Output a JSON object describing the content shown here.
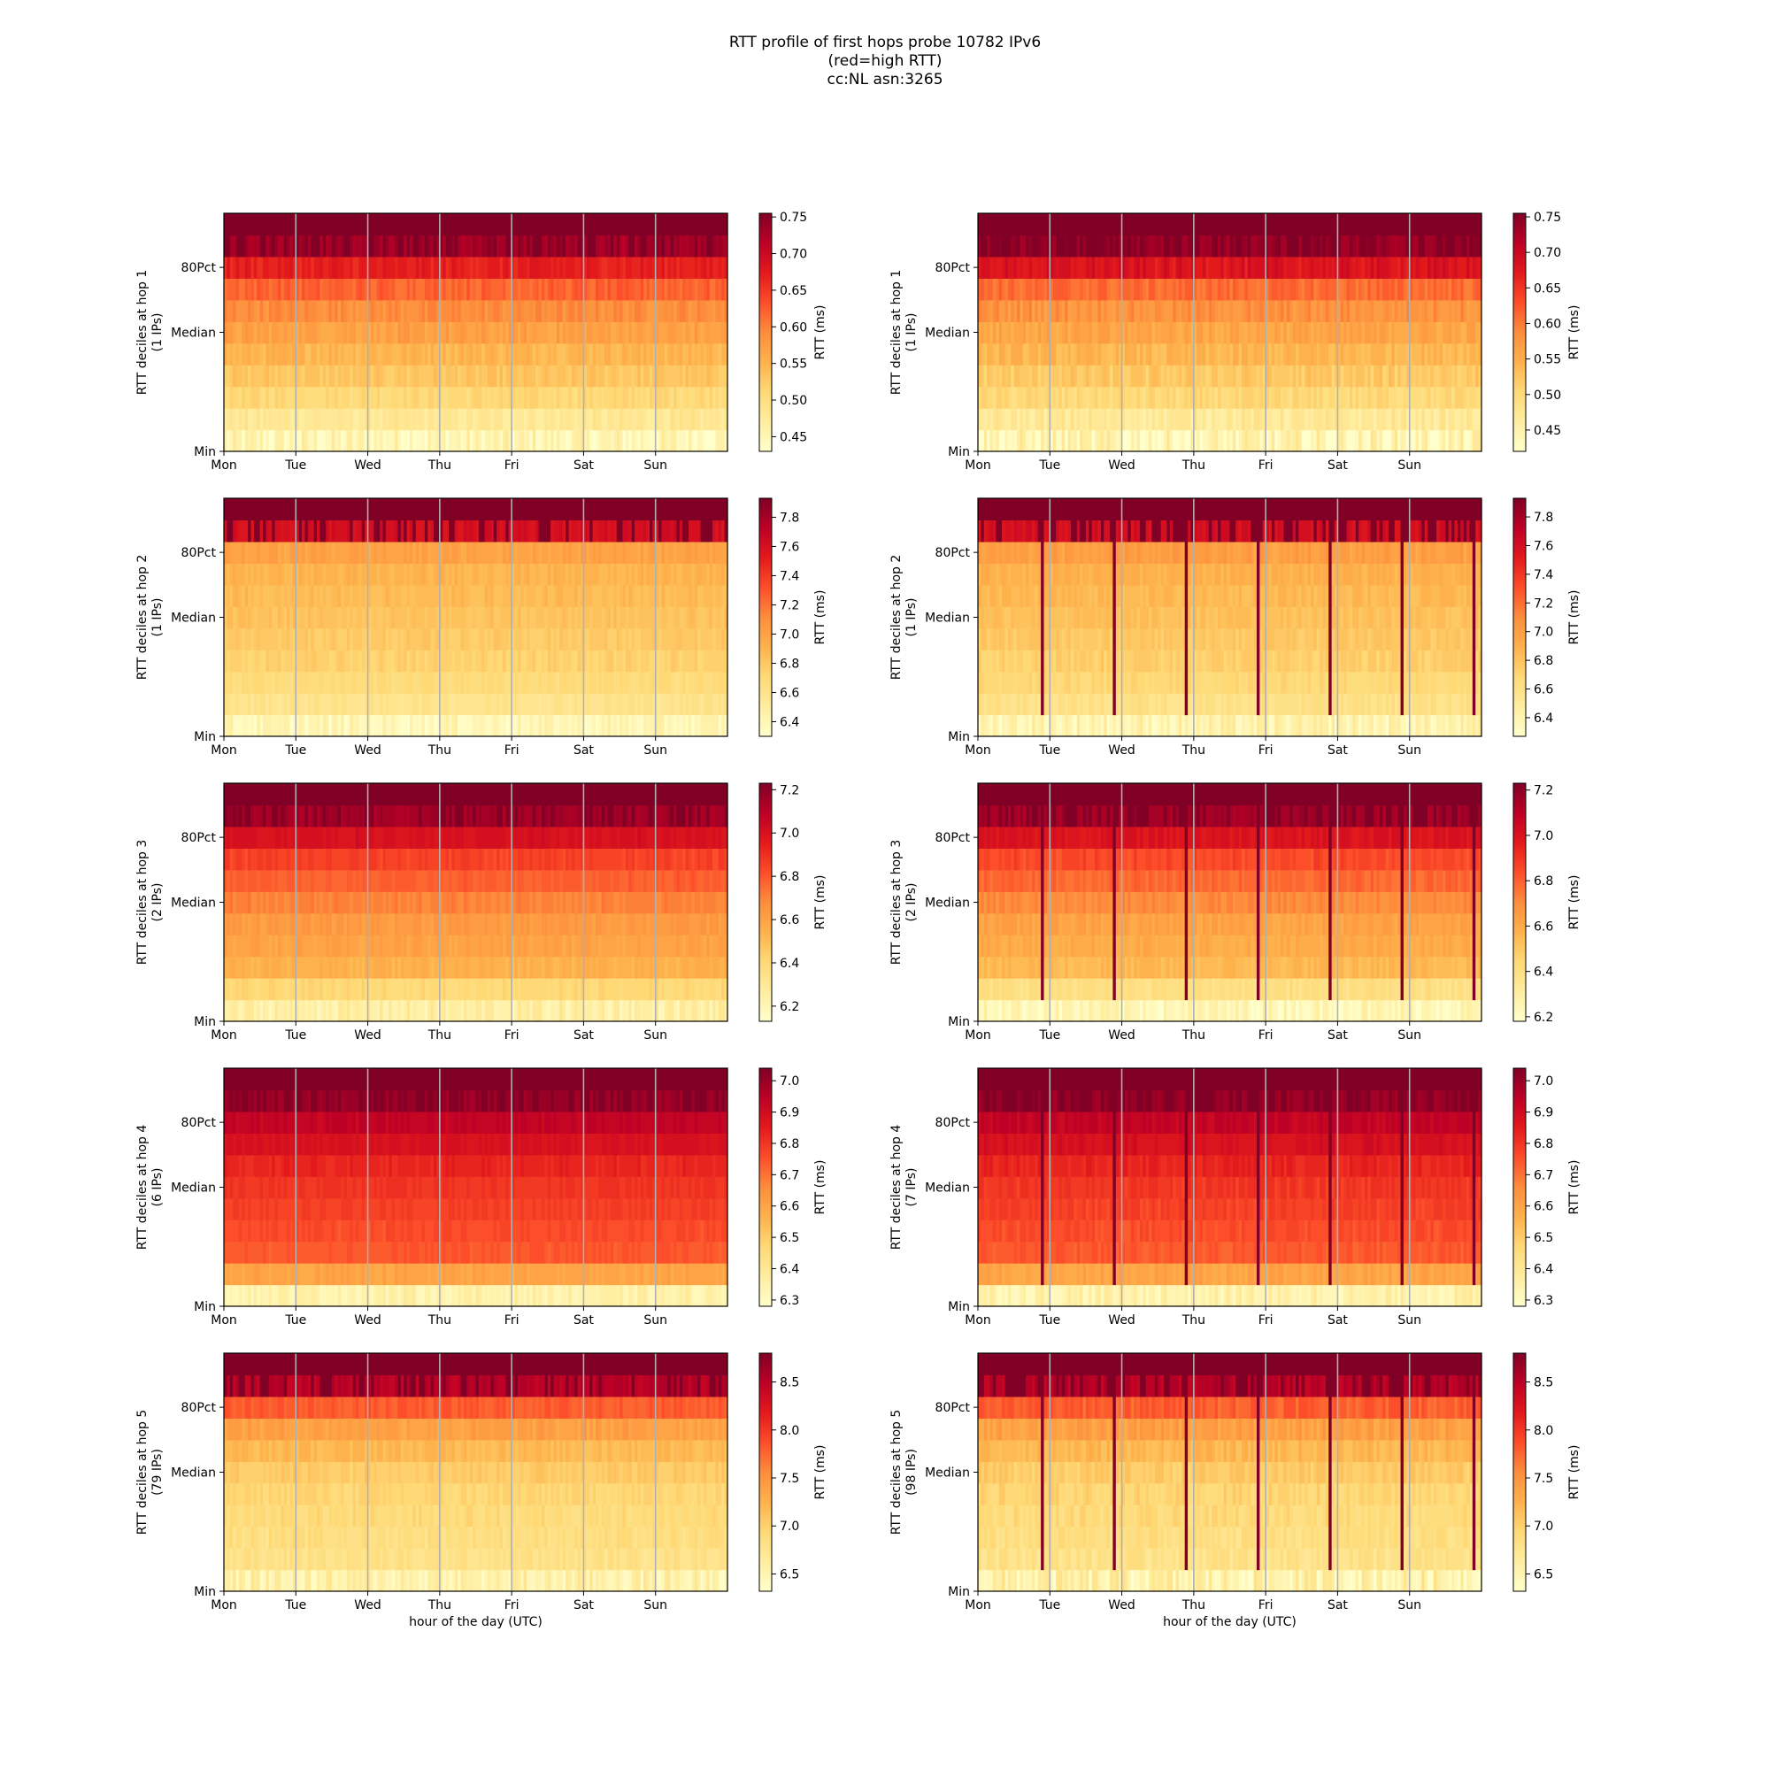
{
  "title_lines": [
    "RTT profile of first hops probe 10782 IPv6",
    "(red=high RTT)",
    "cc:NL asn:3265"
  ],
  "chart_data": [
    {
      "type": "heatmap",
      "column": 0,
      "row": 0,
      "hop": 1,
      "ylabel_line1": "RTT deciles at hop 1",
      "ylabel_line2": "(1 IPs)",
      "cbar_label": "RTT (ms)",
      "cbar_range": [
        0.43,
        0.755
      ],
      "cbar_ticks": [
        "0.45",
        "0.50",
        "0.55",
        "0.60",
        "0.65",
        "0.70",
        "0.75"
      ],
      "x_ticks": [
        "Mon",
        "Tue",
        "Wed",
        "Thu",
        "Fri",
        "Sat",
        "Sun"
      ],
      "y_ticks": [
        "Min",
        "Median",
        "80Pct"
      ],
      "xlabel": "",
      "deciles": [
        0.45,
        0.48,
        0.51,
        0.53,
        0.55,
        0.57,
        0.59,
        0.62,
        0.67,
        0.73,
        0.78
      ],
      "noise": 0.012,
      "spikes": false
    },
    {
      "type": "heatmap",
      "column": 1,
      "row": 0,
      "hop": 1,
      "ylabel_line1": "RTT deciles at hop 1",
      "ylabel_line2": "(1 IPs)",
      "cbar_label": "RTT (ms)",
      "cbar_range": [
        0.42,
        0.755
      ],
      "cbar_ticks": [
        "0.45",
        "0.50",
        "0.55",
        "0.60",
        "0.65",
        "0.70",
        "0.75"
      ],
      "x_ticks": [
        "Mon",
        "Tue",
        "Wed",
        "Thu",
        "Fri",
        "Sat",
        "Sun"
      ],
      "y_ticks": [
        "Min",
        "Median",
        "80Pct"
      ],
      "xlabel": "",
      "deciles": [
        0.44,
        0.47,
        0.5,
        0.52,
        0.54,
        0.56,
        0.58,
        0.61,
        0.68,
        0.74,
        0.78
      ],
      "noise": 0.015,
      "spikes": false
    },
    {
      "type": "heatmap",
      "column": 0,
      "row": 1,
      "hop": 2,
      "ylabel_line1": "RTT deciles at hop 2",
      "ylabel_line2": "(1 IPs)",
      "cbar_label": "RTT (ms)",
      "cbar_range": [
        6.3,
        7.93
      ],
      "cbar_ticks": [
        "6.4",
        "6.6",
        "6.8",
        "7.0",
        "7.2",
        "7.4",
        "7.6",
        "7.8"
      ],
      "x_ticks": [
        "Mon",
        "Tue",
        "Wed",
        "Thu",
        "Fri",
        "Sat",
        "Sun"
      ],
      "y_ticks": [
        "Min",
        "Median",
        "80Pct"
      ],
      "xlabel": "",
      "deciles": [
        6.4,
        6.6,
        6.68,
        6.74,
        6.78,
        6.82,
        6.86,
        6.9,
        7.0,
        7.6,
        8.0
      ],
      "noise": 0.04,
      "spikes": false
    },
    {
      "type": "heatmap",
      "column": 1,
      "row": 1,
      "hop": 2,
      "ylabel_line1": "RTT deciles at hop 2",
      "ylabel_line2": "(1 IPs)",
      "cbar_label": "RTT (ms)",
      "cbar_range": [
        6.27,
        7.93
      ],
      "cbar_ticks": [
        "6.4",
        "6.6",
        "6.8",
        "7.0",
        "7.2",
        "7.4",
        "7.6",
        "7.8"
      ],
      "x_ticks": [
        "Mon",
        "Tue",
        "Wed",
        "Thu",
        "Fri",
        "Sat",
        "Sun"
      ],
      "y_ticks": [
        "Min",
        "Median",
        "80Pct"
      ],
      "xlabel": "",
      "deciles": [
        6.4,
        6.6,
        6.68,
        6.74,
        6.78,
        6.82,
        6.86,
        6.9,
        7.0,
        7.6,
        8.0
      ],
      "noise": 0.05,
      "spikes": true
    },
    {
      "type": "heatmap",
      "column": 0,
      "row": 2,
      "hop": 3,
      "ylabel_line1": "RTT deciles at hop 3",
      "ylabel_line2": "(2 IPs)",
      "cbar_label": "RTT (ms)",
      "cbar_range": [
        6.13,
        7.23
      ],
      "cbar_ticks": [
        "6.2",
        "6.4",
        "6.6",
        "6.8",
        "7.0",
        "7.2"
      ],
      "x_ticks": [
        "Mon",
        "Tue",
        "Wed",
        "Thu",
        "Fri",
        "Sat",
        "Sun"
      ],
      "y_ticks": [
        "Min",
        "Median",
        "80Pct"
      ],
      "xlabel": "",
      "deciles": [
        6.25,
        6.4,
        6.55,
        6.6,
        6.63,
        6.7,
        6.78,
        6.85,
        7.0,
        7.15,
        7.3
      ],
      "noise": 0.025,
      "spikes": false
    },
    {
      "type": "heatmap",
      "column": 1,
      "row": 2,
      "hop": 3,
      "ylabel_line1": "RTT deciles at hop 3",
      "ylabel_line2": "(2 IPs)",
      "cbar_label": "RTT (ms)",
      "cbar_range": [
        6.18,
        7.23
      ],
      "cbar_ticks": [
        "6.2",
        "6.4",
        "6.6",
        "6.8",
        "7.0",
        "7.2"
      ],
      "x_ticks": [
        "Mon",
        "Tue",
        "Wed",
        "Thu",
        "Fri",
        "Sat",
        "Sun"
      ],
      "y_ticks": [
        "Min",
        "Median",
        "80Pct"
      ],
      "xlabel": "",
      "deciles": [
        6.25,
        6.4,
        6.55,
        6.6,
        6.63,
        6.7,
        6.78,
        6.85,
        7.0,
        7.15,
        7.3
      ],
      "noise": 0.03,
      "spikes": true
    },
    {
      "type": "heatmap",
      "column": 0,
      "row": 3,
      "hop": 4,
      "ylabel_line1": "RTT deciles at hop 4",
      "ylabel_line2": "(6 IPs)",
      "cbar_label": "RTT (ms)",
      "cbar_range": [
        6.28,
        7.04
      ],
      "cbar_ticks": [
        "6.3",
        "6.4",
        "6.5",
        "6.6",
        "6.7",
        "6.8",
        "6.9",
        "7.0"
      ],
      "x_ticks": [
        "Mon",
        "Tue",
        "Wed",
        "Thu",
        "Fri",
        "Sat",
        "Sun"
      ],
      "y_ticks": [
        "Min",
        "Median",
        "80Pct"
      ],
      "xlabel": "",
      "deciles": [
        6.35,
        6.6,
        6.74,
        6.76,
        6.78,
        6.8,
        6.83,
        6.88,
        6.93,
        7.0,
        7.1
      ],
      "noise": 0.015,
      "spikes": false
    },
    {
      "type": "heatmap",
      "column": 1,
      "row": 3,
      "hop": 4,
      "ylabel_line1": "RTT deciles at hop 4",
      "ylabel_line2": "(7 IPs)",
      "cbar_label": "RTT (ms)",
      "cbar_range": [
        6.28,
        7.04
      ],
      "cbar_ticks": [
        "6.3",
        "6.4",
        "6.5",
        "6.6",
        "6.7",
        "6.8",
        "6.9",
        "7.0"
      ],
      "x_ticks": [
        "Mon",
        "Tue",
        "Wed",
        "Thu",
        "Fri",
        "Sat",
        "Sun"
      ],
      "y_ticks": [
        "Min",
        "Median",
        "80Pct"
      ],
      "xlabel": "",
      "deciles": [
        6.35,
        6.6,
        6.74,
        6.76,
        6.78,
        6.8,
        6.83,
        6.88,
        6.93,
        7.0,
        7.1
      ],
      "noise": 0.02,
      "spikes": true
    },
    {
      "type": "heatmap",
      "column": 0,
      "row": 4,
      "hop": 5,
      "ylabel_line1": "RTT deciles at hop 5",
      "ylabel_line2": "(79 IPs)",
      "cbar_label": "RTT (ms)",
      "cbar_range": [
        6.32,
        8.8
      ],
      "cbar_ticks": [
        "6.5",
        "7.0",
        "7.5",
        "8.0",
        "8.5"
      ],
      "x_ticks": [
        "Mon",
        "Tue",
        "Wed",
        "Thu",
        "Fri",
        "Sat",
        "Sun"
      ],
      "y_ticks": [
        "Min",
        "Median",
        "80Pct"
      ],
      "xlabel": "hour of the day (UTC)",
      "deciles": [
        6.55,
        6.8,
        6.85,
        6.9,
        6.95,
        7.05,
        7.2,
        7.4,
        7.8,
        8.5,
        9.0
      ],
      "noise": 0.08,
      "spikes": false
    },
    {
      "type": "heatmap",
      "column": 1,
      "row": 4,
      "hop": 5,
      "ylabel_line1": "RTT deciles at hop 5",
      "ylabel_line2": "(98 IPs)",
      "cbar_label": "RTT (ms)",
      "cbar_range": [
        6.32,
        8.8
      ],
      "cbar_ticks": [
        "6.5",
        "7.0",
        "7.5",
        "8.0",
        "8.5"
      ],
      "x_ticks": [
        "Mon",
        "Tue",
        "Wed",
        "Thu",
        "Fri",
        "Sat",
        "Sun"
      ],
      "y_ticks": [
        "Min",
        "Median",
        "80Pct"
      ],
      "xlabel": "hour of the day (UTC)",
      "deciles": [
        6.55,
        6.8,
        6.85,
        6.9,
        6.95,
        7.05,
        7.2,
        7.4,
        7.8,
        8.5,
        9.0
      ],
      "noise": 0.1,
      "spikes": true
    }
  ]
}
